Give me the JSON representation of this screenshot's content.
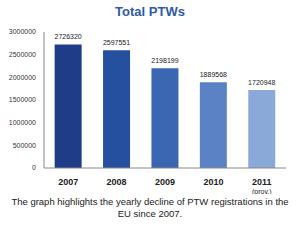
{
  "chart_data": {
    "type": "bar",
    "title": "Total PTWs",
    "caption": "The graph highlights the yearly decline of PTW registrations in the EU since 2007.",
    "categories": [
      "2007",
      "2008",
      "2009",
      "2010",
      "2011 (prov.)"
    ],
    "values": [
      2726320,
      2597551,
      2198199,
      1889568,
      1720948
    ],
    "colors": [
      "#1f3c88",
      "#2550a0",
      "#3a66b2",
      "#5a82c4",
      "#8aa8d8"
    ],
    "ylim": [
      0,
      3000000
    ],
    "yticks": [
      0,
      500000,
      1000000,
      1500000,
      2000000,
      2500000,
      3000000
    ],
    "grid": false,
    "data_labels": true
  }
}
